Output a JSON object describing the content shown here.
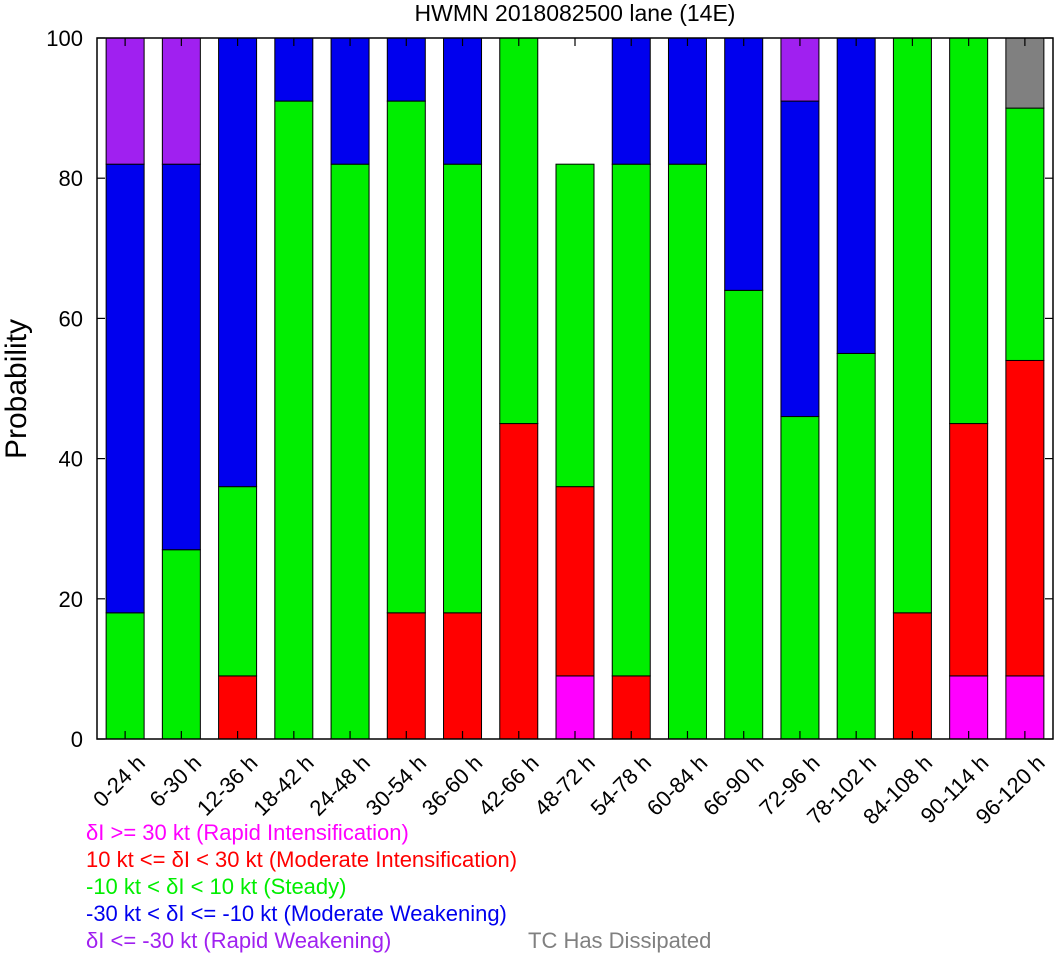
{
  "chart_data": {
    "type": "bar",
    "stacked": true,
    "title": "HWMN 2018082500 lane (14E)",
    "xlabel": "",
    "ylabel": "Probability",
    "ylim": [
      0,
      100
    ],
    "yticks": [
      0,
      20,
      40,
      60,
      80,
      100
    ],
    "grid": false,
    "categories": [
      "0-24 h",
      "6-30 h",
      "12-36 h",
      "18-42 h",
      "24-48 h",
      "30-54 h",
      "36-60 h",
      "42-66 h",
      "48-72 h",
      "54-78 h",
      "60-84 h",
      "66-90 h",
      "72-96 h",
      "78-102 h",
      "84-108 h",
      "90-114 h",
      "96-120 h"
    ],
    "series": [
      {
        "name": "δI >= 30 kt (Rapid Intensification)",
        "color": "#ff00ff",
        "values": [
          0,
          0,
          0,
          0,
          0,
          0,
          0,
          0,
          9,
          0,
          0,
          0,
          0,
          0,
          0,
          9,
          9
        ]
      },
      {
        "name": "10 kt <= δI < 30 kt (Moderate Intensification)",
        "color": "#ff0000",
        "values": [
          0,
          0,
          9,
          0,
          0,
          18,
          18,
          45,
          27,
          9,
          0,
          0,
          0,
          0,
          18,
          36,
          45
        ]
      },
      {
        "name": "-10 kt < δI < 10 kt (Steady)",
        "color": "#00ee00",
        "values": [
          18,
          27,
          27,
          91,
          82,
          73,
          64,
          55,
          46,
          73,
          82,
          64,
          46,
          55,
          82,
          55,
          36
        ]
      },
      {
        "name": "-30 kt < δI <= -10 kt (Moderate Weakening)",
        "color": "#0000ee",
        "values": [
          64,
          55,
          64,
          9,
          18,
          9,
          18,
          0,
          0,
          18,
          18,
          36,
          45,
          45,
          0,
          0,
          0
        ]
      },
      {
        "name": "δI <= -30 kt (Rapid Weakening)",
        "color": "#a020f0",
        "values": [
          18,
          18,
          0,
          0,
          0,
          0,
          0,
          0,
          0,
          0,
          0,
          0,
          9,
          0,
          0,
          0,
          0
        ]
      },
      {
        "name": "TC Has Dissipated",
        "color": "#808080",
        "values": [
          0,
          0,
          0,
          0,
          0,
          0,
          0,
          0,
          0,
          0,
          0,
          0,
          0,
          0,
          0,
          0,
          10
        ]
      }
    ]
  },
  "legend": [
    {
      "text": "δI >= 30 kt (Rapid Intensification)",
      "color": "#ff00ff"
    },
    {
      "text": "10 kt <= δI < 30 kt (Moderate Intensification)",
      "color": "#ff0000"
    },
    {
      "text": "-10 kt < δI < 10 kt (Steady)",
      "color": "#00ee00"
    },
    {
      "text": "-30 kt < δI <= -10 kt (Moderate Weakening)",
      "color": "#0000ee"
    },
    {
      "text": "δI <= -30 kt (Rapid Weakening)",
      "color": "#a020f0"
    },
    {
      "text": "TC Has Dissipated",
      "color": "#808080"
    }
  ]
}
